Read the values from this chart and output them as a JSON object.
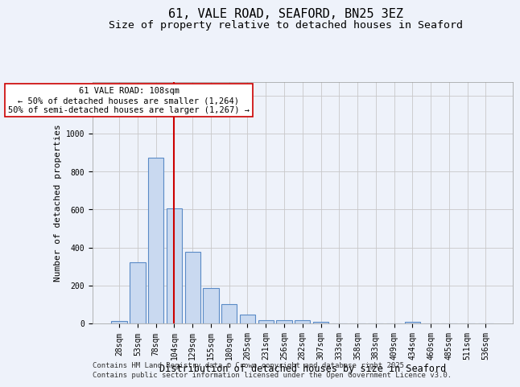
{
  "title1": "61, VALE ROAD, SEAFORD, BN25 3EZ",
  "title2": "Size of property relative to detached houses in Seaford",
  "xlabel": "Distribution of detached houses by size in Seaford",
  "ylabel": "Number of detached properties",
  "bar_labels": [
    "28sqm",
    "53sqm",
    "78sqm",
    "104sqm",
    "129sqm",
    "155sqm",
    "180sqm",
    "205sqm",
    "231sqm",
    "256sqm",
    "282sqm",
    "307sqm",
    "333sqm",
    "358sqm",
    "383sqm",
    "409sqm",
    "434sqm",
    "460sqm",
    "485sqm",
    "511sqm",
    "536sqm"
  ],
  "bar_values": [
    12,
    320,
    870,
    605,
    375,
    185,
    100,
    45,
    18,
    15,
    15,
    8,
    0,
    0,
    0,
    0,
    10,
    0,
    0,
    0,
    0
  ],
  "bar_color": "#c9d9f0",
  "bar_edge_color": "#5a8ac6",
  "vline_x": 3.0,
  "vline_color": "#cc0000",
  "annotation_line1": "61 VALE ROAD: 108sqm",
  "annotation_line2": "← 50% of detached houses are smaller (1,264)",
  "annotation_line3": "50% of semi-detached houses are larger (1,267) →",
  "ylim_max": 1270,
  "yticks": [
    0,
    200,
    400,
    600,
    800,
    1000,
    1200
  ],
  "grid_color": "#c8c8c8",
  "background_color": "#eef2fa",
  "footer_line1": "Contains HM Land Registry data © Crown copyright and database right 2025.",
  "footer_line2": "Contains public sector information licensed under the Open Government Licence v3.0.",
  "title1_fontsize": 11,
  "title2_fontsize": 9.5,
  "xlabel_fontsize": 8.5,
  "ylabel_fontsize": 8,
  "tick_fontsize": 7,
  "annotation_fontsize": 7.5,
  "footer_fontsize": 6.5
}
